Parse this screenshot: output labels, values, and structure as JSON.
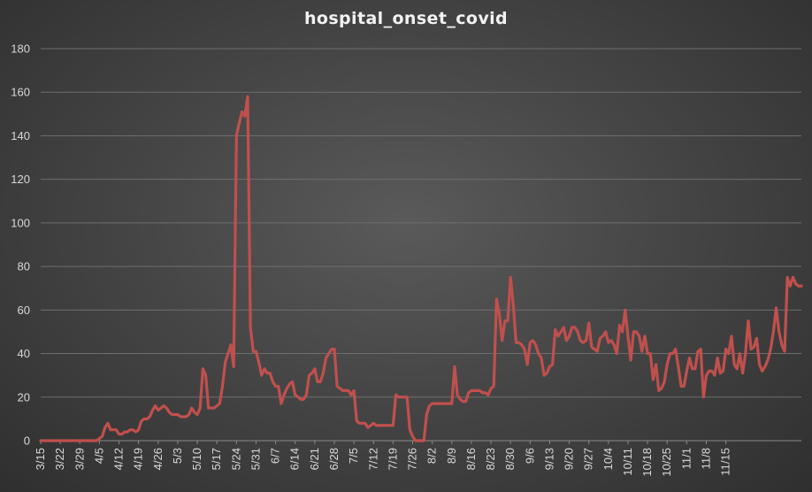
{
  "chart_data": {
    "type": "line",
    "title": "hospital_onset_covid",
    "xlabel": "",
    "ylabel": "",
    "ylim": [
      0,
      180
    ],
    "y_ticks": [
      0,
      20,
      40,
      60,
      80,
      100,
      120,
      140,
      160,
      180
    ],
    "grid": true,
    "x_tick_labels": [
      "3/15",
      "3/22",
      "3/29",
      "4/5",
      "4/12",
      "4/19",
      "4/26",
      "5/3",
      "5/10",
      "5/17",
      "5/24",
      "5/31",
      "6/7",
      "6/14",
      "6/21",
      "6/28",
      "7/5",
      "7/12",
      "7/19",
      "7/26",
      "8/2",
      "8/9",
      "8/16",
      "8/23",
      "8/30",
      "9/6",
      "9/13",
      "9/20",
      "9/27",
      "10/4",
      "10/11",
      "10/18",
      "10/25",
      "11/1",
      "11/8",
      "11/15"
    ],
    "line_color": "#c0504d",
    "series": [
      {
        "name": "hospital_onset_covid",
        "values": [
          0,
          0,
          0,
          0,
          0,
          0,
          0,
          0,
          0,
          0,
          0,
          0,
          0,
          0,
          0,
          0,
          0,
          0,
          0,
          0,
          0,
          1,
          2,
          6,
          8,
          5,
          5,
          5,
          3,
          3,
          4,
          4,
          5,
          5,
          4,
          5,
          9,
          10,
          10,
          11,
          14,
          16,
          14,
          15,
          16,
          15,
          13,
          12,
          12,
          12,
          11,
          11,
          11,
          12,
          15,
          13,
          12,
          15,
          33,
          30,
          15,
          15,
          15,
          16,
          17,
          25,
          36,
          40,
          44,
          34,
          140,
          146,
          151,
          149,
          158,
          52,
          41,
          41,
          36,
          30,
          33,
          31,
          31,
          27,
          25,
          25,
          17,
          21,
          24,
          26,
          27,
          21,
          20,
          19,
          19,
          21,
          30,
          31,
          33,
          27,
          27,
          31,
          38,
          40,
          42,
          42,
          25,
          24,
          23,
          23,
          23,
          21,
          23,
          9,
          8,
          8,
          8,
          6,
          7,
          8,
          7,
          7,
          7,
          7,
          7,
          7,
          7,
          21,
          20,
          20,
          20,
          20,
          5,
          2,
          0,
          0,
          0,
          0,
          12,
          16,
          17,
          17,
          17,
          17,
          17,
          17,
          17,
          17,
          34,
          21,
          19,
          18,
          18,
          22,
          23,
          23,
          23,
          23,
          22,
          22,
          21,
          24,
          25,
          65,
          58,
          46,
          55,
          55,
          75,
          62,
          45,
          45,
          44,
          42,
          35,
          45,
          46,
          44,
          40,
          38,
          30,
          31,
          34,
          35,
          51,
          48,
          50,
          52,
          46,
          48,
          52,
          52,
          50,
          46,
          45,
          46,
          54,
          43,
          42,
          41,
          47,
          48,
          50,
          45,
          46,
          44,
          40,
          53,
          50,
          60,
          48,
          37,
          50,
          50,
          48,
          41,
          48,
          40,
          40,
          28,
          35,
          23,
          24,
          27,
          35,
          40,
          40,
          42,
          34,
          25,
          25,
          32,
          38,
          33,
          33,
          41,
          42,
          20,
          30,
          32,
          32,
          30,
          38,
          31,
          32,
          42,
          40,
          48,
          35,
          33,
          40,
          31,
          40,
          55,
          42,
          43,
          47,
          35,
          32,
          34,
          37,
          42,
          50,
          61,
          50,
          44,
          41,
          75,
          71,
          75,
          72,
          71,
          71
        ]
      }
    ]
  }
}
